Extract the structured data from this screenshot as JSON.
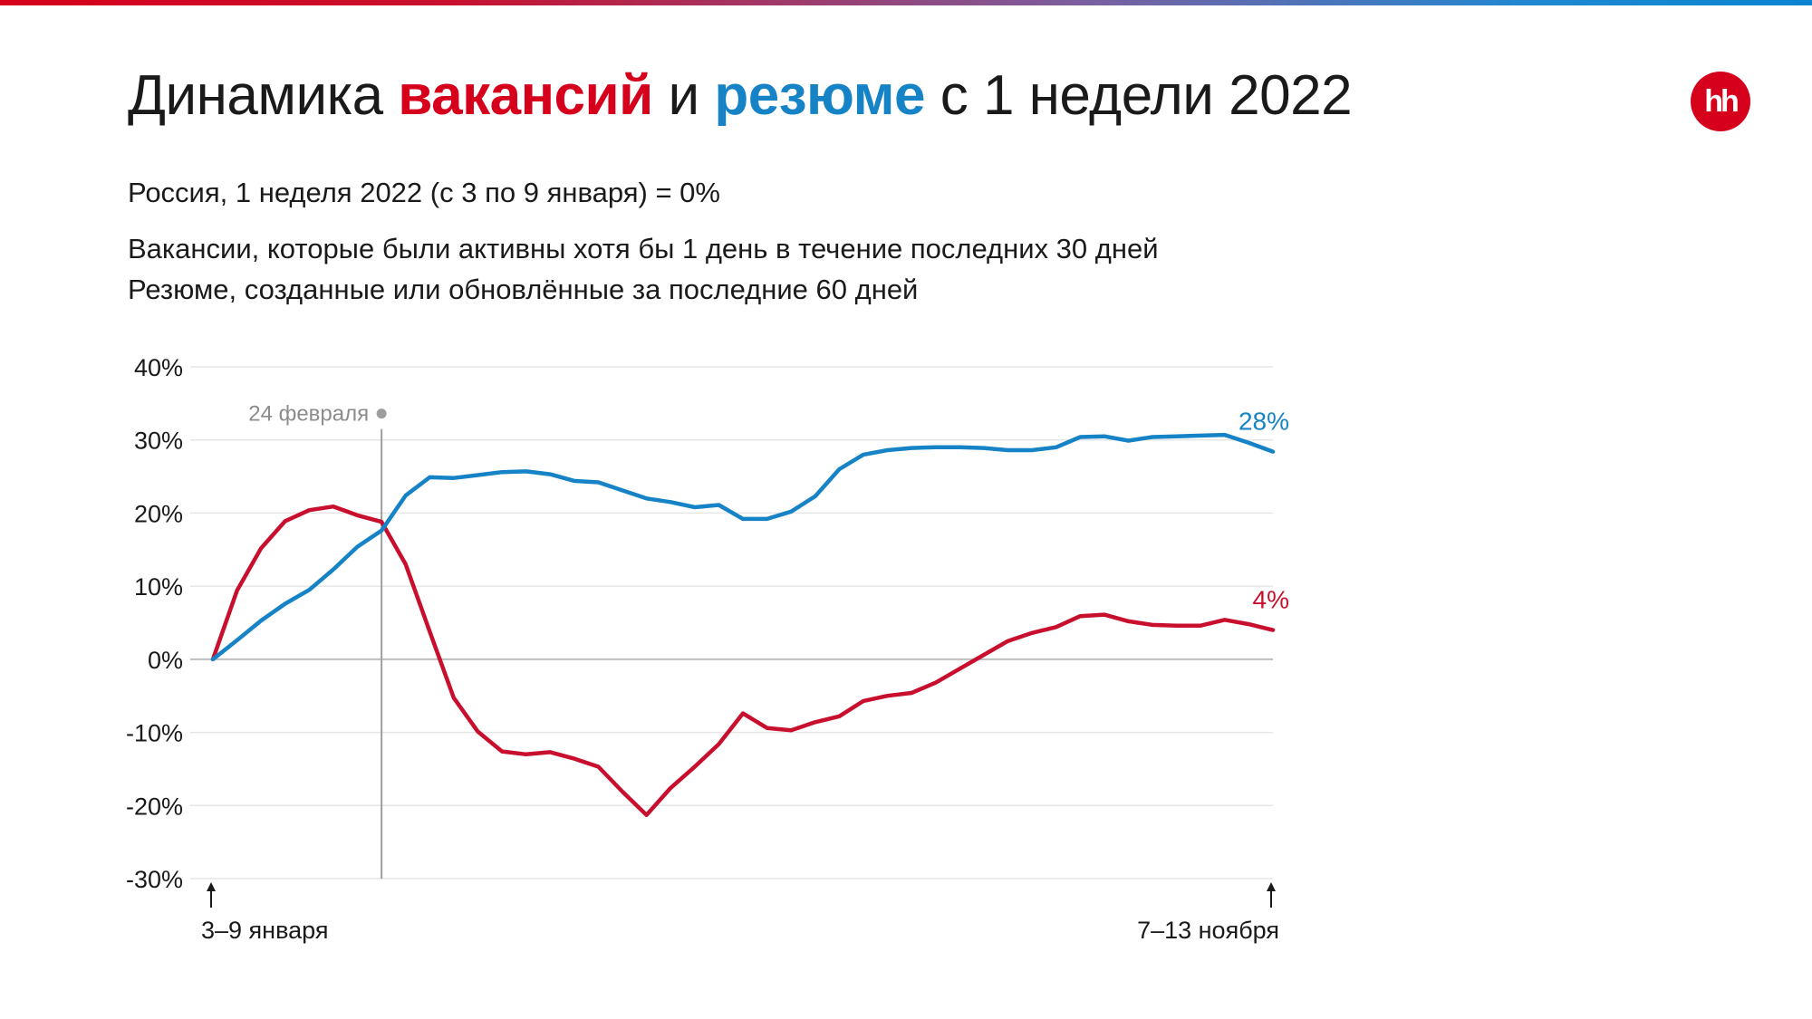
{
  "header": {
    "title_part1": "Динамика ",
    "title_vacancies": "вакансий",
    "title_part2": " и ",
    "title_resumes": "резюме",
    "title_part3": " с 1 недели 2022",
    "logo_text": "hh"
  },
  "subtitles": {
    "baseline": "Россия, 1 неделя 2022 (с 3 по 9 января) = 0%",
    "vacancies_def": "Вакансии, которые были активны хотя бы 1 день в течение последних 30 дней",
    "resumes_def": "Резюме, созданные или обновлённые за последние 60 дней"
  },
  "colors": {
    "vacancies": "#c8102e",
    "resumes": "#1683c6",
    "brand": "#d6001c",
    "annotation": "#9e9e9e",
    "gridline": "#e6e6e6",
    "zeroline": "#bdbdbd"
  },
  "chart_data": {
    "type": "line",
    "title": "Динамика вакансий и резюме с 1 недели 2022",
    "ylim": [
      -30,
      40
    ],
    "yticks": [
      40,
      30,
      20,
      10,
      0,
      -10,
      -20,
      -30
    ],
    "ytick_labels": [
      "40%",
      "30%",
      "20%",
      "10%",
      "0%",
      "-10%",
      "-20%",
      "-30%"
    ],
    "x": [
      1,
      2,
      3,
      4,
      5,
      6,
      7,
      8,
      9,
      10,
      11,
      12,
      13,
      14,
      15,
      16,
      17,
      18,
      19,
      20,
      21,
      22,
      23,
      24,
      25,
      26,
      27,
      28,
      29,
      30,
      31,
      32,
      33,
      34,
      35,
      36,
      37,
      38,
      39,
      40,
      41,
      42,
      43,
      44,
      45
    ],
    "x_start_label": "3–9 января",
    "x_end_label": "7–13 ноября",
    "annotation": {
      "x": 8,
      "label": "24 февраля"
    },
    "series": [
      {
        "name": "вакансии",
        "color": "#c8102e",
        "end_label": "4%",
        "values": [
          0,
          9.4,
          15.2,
          18.9,
          20.4,
          20.9,
          19.7,
          18.8,
          13.0,
          3.8,
          -5.3,
          -9.9,
          -12.6,
          -13.0,
          -12.7,
          -13.6,
          -14.7,
          -18.1,
          -21.3,
          -17.6,
          -14.7,
          -11.6,
          -7.4,
          -9.4,
          -9.7,
          -8.6,
          -7.8,
          -5.7,
          -5.0,
          -4.6,
          -3.2,
          -1.3,
          0.6,
          2.5,
          3.6,
          4.4,
          5.9,
          6.1,
          5.2,
          4.7,
          4.6,
          4.6,
          5.4,
          4.8,
          4.0
        ]
      },
      {
        "name": "резюме",
        "color": "#1683c6",
        "end_label": "28%",
        "values": [
          0,
          2.6,
          5.3,
          7.6,
          9.5,
          12.3,
          15.4,
          17.6,
          22.4,
          24.9,
          24.8,
          25.2,
          25.6,
          25.7,
          25.3,
          24.4,
          24.2,
          23.1,
          22.0,
          21.5,
          20.8,
          21.1,
          19.2,
          19.2,
          20.2,
          22.3,
          26.0,
          28.0,
          28.6,
          28.9,
          29.0,
          29.0,
          28.9,
          28.6,
          28.6,
          29.0,
          30.4,
          30.5,
          29.9,
          30.4,
          30.5,
          30.6,
          30.7,
          29.6,
          28.4
        ]
      }
    ]
  }
}
